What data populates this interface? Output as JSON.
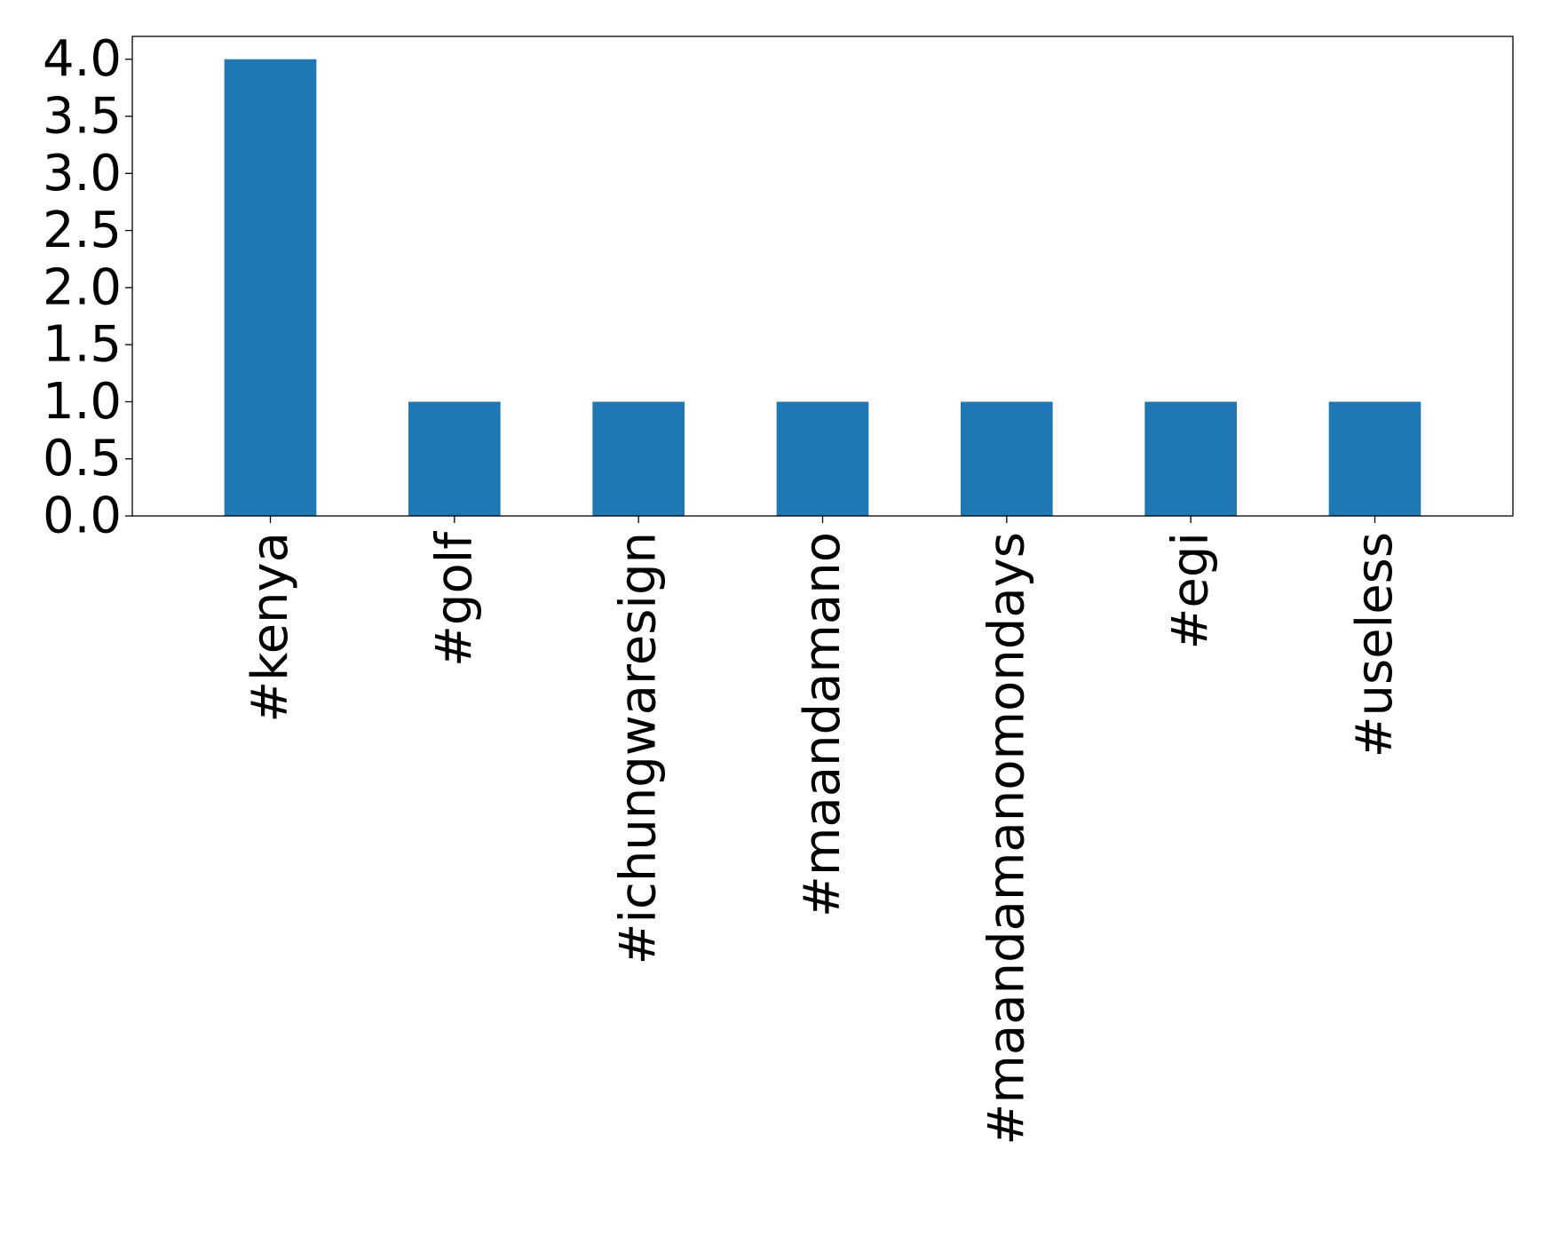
{
  "chart_data": {
    "type": "bar",
    "title": "",
    "xlabel": "",
    "ylabel": "",
    "categories": [
      "#kenya",
      "#golf",
      "#ichungwaresign",
      "#maandamano",
      "#maandamanomondays",
      "#egi",
      "#useless"
    ],
    "values": [
      4,
      1,
      1,
      1,
      1,
      1,
      1
    ],
    "ylim": [
      0,
      4.2
    ],
    "yticks": [
      0.0,
      0.5,
      1.0,
      1.5,
      2.0,
      2.5,
      3.0,
      3.5,
      4.0
    ],
    "ytick_labels": [
      "0.0",
      "0.5",
      "1.0",
      "1.5",
      "2.0",
      "2.5",
      "3.0",
      "3.5",
      "4.0"
    ],
    "xtick_rotation": "vertical",
    "grid": false,
    "legend": "none",
    "colors": {
      "bar": "#1f77b4",
      "axis": "#000000",
      "background": "#ffffff"
    }
  }
}
